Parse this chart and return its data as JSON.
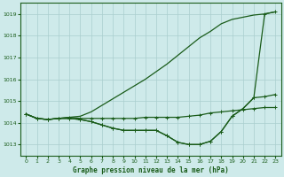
{
  "xlabel": "Graphe pression niveau de la mer (hPa)",
  "bg_color": "#ceeaea",
  "grid_color": "#aacece",
  "line_color": "#1a5c1a",
  "xlim": [
    -0.5,
    23.5
  ],
  "ylim": [
    1012.5,
    1019.5
  ],
  "yticks": [
    1013,
    1014,
    1015,
    1016,
    1017,
    1018,
    1019
  ],
  "xticks": [
    0,
    1,
    2,
    3,
    4,
    5,
    6,
    7,
    8,
    9,
    10,
    11,
    12,
    13,
    14,
    15,
    16,
    17,
    18,
    19,
    20,
    21,
    22,
    23
  ],
  "series": [
    {
      "markers": false,
      "x": [
        0,
        1,
        2,
        3,
        4,
        5,
        6,
        7,
        8,
        9,
        10,
        11,
        12,
        13,
        14,
        15,
        16,
        17,
        18,
        19,
        20,
        21,
        22,
        23
      ],
      "y": [
        1014.4,
        1014.2,
        1014.15,
        1014.2,
        1014.25,
        1014.3,
        1014.5,
        1014.8,
        1015.1,
        1015.4,
        1015.7,
        1016.0,
        1016.35,
        1016.7,
        1017.1,
        1017.5,
        1017.9,
        1018.2,
        1018.55,
        1018.75,
        1018.85,
        1018.95,
        1019.0,
        1019.1
      ]
    },
    {
      "markers": true,
      "x": [
        0,
        1,
        2,
        3,
        4,
        5,
        6,
        7,
        8,
        9,
        10,
        11,
        12,
        13,
        14,
        15,
        16,
        17,
        18,
        19,
        20,
        21,
        22,
        23
      ],
      "y": [
        1014.4,
        1014.2,
        1014.15,
        1014.2,
        1014.25,
        1014.2,
        1014.2,
        1014.2,
        1014.2,
        1014.2,
        1014.2,
        1014.25,
        1014.25,
        1014.25,
        1014.25,
        1014.3,
        1014.35,
        1014.45,
        1014.5,
        1014.55,
        1014.6,
        1014.65,
        1014.7,
        1014.7
      ]
    },
    {
      "markers": true,
      "x": [
        0,
        1,
        2,
        3,
        4,
        5,
        6,
        7,
        8,
        9,
        10,
        11,
        12,
        13,
        14,
        15,
        16,
        17,
        18,
        19,
        20,
        21,
        22,
        23
      ],
      "y": [
        1014.4,
        1014.2,
        1014.15,
        1014.2,
        1014.2,
        1014.15,
        1014.05,
        1013.9,
        1013.75,
        1013.65,
        1013.65,
        1013.65,
        1013.65,
        1013.4,
        1013.1,
        1013.0,
        1013.0,
        1013.15,
        1013.6,
        1014.3,
        1014.65,
        1015.15,
        1015.2,
        1015.3
      ]
    },
    {
      "markers": true,
      "x": [
        0,
        1,
        2,
        3,
        4,
        5,
        6,
        7,
        8,
        9,
        10,
        11,
        12,
        13,
        14,
        15,
        16,
        17,
        18,
        19,
        20,
        21,
        22,
        23
      ],
      "y": [
        1014.4,
        1014.2,
        1014.15,
        1014.2,
        1014.2,
        1014.15,
        1014.05,
        1013.9,
        1013.75,
        1013.65,
        1013.65,
        1013.65,
        1013.65,
        1013.4,
        1013.1,
        1013.0,
        1013.0,
        1013.15,
        1013.6,
        1014.3,
        1014.65,
        1015.15,
        1019.0,
        1019.1
      ]
    }
  ]
}
